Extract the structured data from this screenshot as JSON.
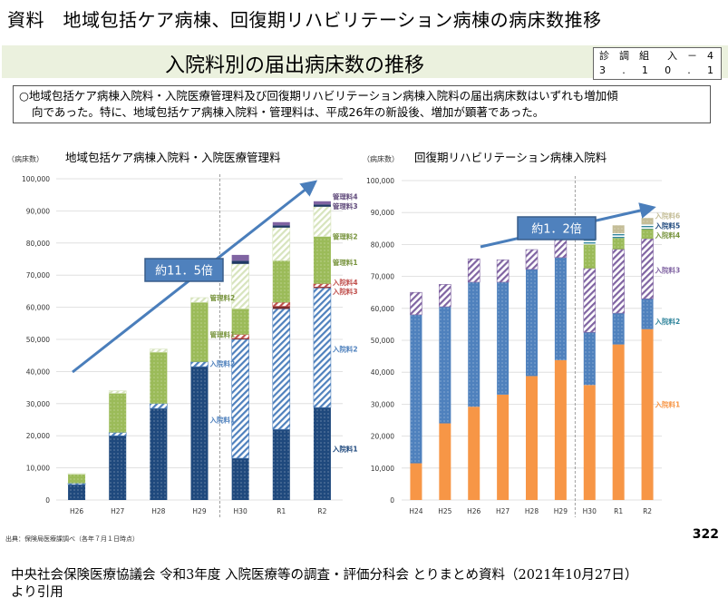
{
  "doc_title": "資料　地域包括ケア病棟、回復期リハビリテーション病棟の病床数推移",
  "banner_title": "入院料別の届出病床数の推移",
  "code_box": {
    "line1": [
      "診",
      "調",
      "組",
      "",
      "入",
      "－",
      "4"
    ],
    "line2": [
      "3",
      ".",
      "1",
      "0",
      ".",
      "1"
    ]
  },
  "summary": {
    "line1": "○地域包括ケア病棟入院料・入院医療管理料及び回復期リハビリテーション病棟入院料の届出病床数はいずれも増加傾",
    "line2": "向であった。特に、地域包括ケア病棟入院料・管理料は、平成26年の新設後、増加が顕著であった。"
  },
  "source": "出典：保険局医療課調べ（各年７月１日時点）",
  "page_number": "322",
  "citation": {
    "line1": "中央社会保険医療協議会 令和3年度 入院医療等の調査・評価分科会 とりまとめ資料（2021年10月27日）",
    "line2": "より引用"
  },
  "chart_data": [
    {
      "type": "bar",
      "stacked": true,
      "title": "地域包括ケア病棟入院料・入院医療管理料",
      "ylabel": "（病床数）",
      "xlabel": "",
      "ylim": [
        0,
        100000
      ],
      "yticks": [
        0,
        10000,
        20000,
        30000,
        40000,
        50000,
        60000,
        70000,
        80000,
        90000,
        100000
      ],
      "ytick_labels": [
        "0",
        "10,000",
        "20,000",
        "30,000",
        "40,000",
        "50,000",
        "60,000",
        "70,000",
        "80,000",
        "90,000",
        "100,000"
      ],
      "grid": true,
      "categories": [
        "H26",
        "H27",
        "H28",
        "H29",
        "H30",
        "R1",
        "R2"
      ],
      "divider_after": "H29",
      "annotation": "約11．5倍",
      "series": [
        {
          "name": "入院料1",
          "color": "#1f497d",
          "pattern": "dots",
          "values": [
            4800,
            20000,
            28500,
            41500,
            13000,
            22000,
            28800
          ]
        },
        {
          "name": "入院料2",
          "color": "#4f81bd",
          "pattern": "hatch",
          "values": [
            400,
            1000,
            1500,
            1500,
            37000,
            37500,
            37200
          ]
        },
        {
          "name": "入院料3",
          "color": "#7b2c2c",
          "pattern": "solid",
          "values": [
            0,
            0,
            0,
            0,
            300,
            800,
            300
          ]
        },
        {
          "name": "入院料4",
          "color": "#c0504d",
          "pattern": "hatch",
          "values": [
            0,
            0,
            0,
            0,
            1200,
            1200,
            1000
          ]
        },
        {
          "name": "管理料1",
          "color": "#9bbb59",
          "pattern": "dots",
          "values": [
            2800,
            12200,
            16000,
            18500,
            8000,
            13000,
            14700
          ]
        },
        {
          "name": "管理料2",
          "color": "#d7e4bd",
          "pattern": "hatch",
          "values": [
            200,
            800,
            1000,
            1500,
            14000,
            10300,
            9300
          ]
        },
        {
          "name": "管理料3",
          "color": "#1f3864",
          "pattern": "solid",
          "values": [
            0,
            0,
            0,
            0,
            1000,
            700,
            700
          ]
        },
        {
          "name": "管理料4",
          "color": "#8064a2",
          "pattern": "solid",
          "values": [
            0,
            0,
            0,
            0,
            1800,
            1000,
            1000
          ]
        }
      ],
      "bar_labels": [
        {
          "text": "管理料4",
          "color": "#5f497a",
          "category": "R2",
          "y": 94500
        },
        {
          "text": "管理料3",
          "color": "#5f497a",
          "category": "R2",
          "y": 91500
        },
        {
          "text": "管理料2",
          "color": "#77933c",
          "category": "R2",
          "y": 82000
        },
        {
          "text": "管理料1",
          "color": "#77933c",
          "category": "R2",
          "y": 74000
        },
        {
          "text": "入院料4",
          "color": "#c0504d",
          "category": "R2",
          "y": 67800
        },
        {
          "text": "入院料3",
          "color": "#c0504d",
          "category": "R2",
          "y": 65000
        },
        {
          "text": "入院料2",
          "color": "#4f81bd",
          "category": "R2",
          "y": 47000
        },
        {
          "text": "入院料1",
          "color": "#1f497d",
          "category": "R2",
          "y": 16000
        },
        {
          "text": "管理料2",
          "color": "#77933c",
          "category": "H29",
          "y": 63000
        },
        {
          "text": "管理料1",
          "color": "#77933c",
          "category": "H29",
          "y": 51500
        },
        {
          "text": "入院料2",
          "color": "#4f81bd",
          "category": "H29",
          "y": 42500
        },
        {
          "text": "入院料1",
          "color": "#4f81bd",
          "category": "H29",
          "y": 25000
        }
      ]
    },
    {
      "type": "bar",
      "stacked": true,
      "title": "回復期リハビリテーション病棟入院料",
      "ylabel": "（病床数）",
      "xlabel": "",
      "ylim": [
        0,
        100000
      ],
      "yticks": [
        0,
        10000,
        20000,
        30000,
        40000,
        50000,
        60000,
        70000,
        80000,
        90000,
        100000
      ],
      "ytick_labels": [
        "0",
        "10,000",
        "20,000",
        "30,000",
        "40,000",
        "50,000",
        "60,000",
        "70,000",
        "80,000",
        "90,000",
        "100,000"
      ],
      "grid": true,
      "categories": [
        "H24",
        "H25",
        "H26",
        "H27",
        "H28",
        "H29",
        "H30",
        "R1",
        "R2"
      ],
      "divider_after": "H29",
      "annotation": "約1．2倍",
      "series": [
        {
          "name": "入院料1",
          "color": "#f79646",
          "pattern": "solid",
          "values": [
            11500,
            24000,
            29200,
            33000,
            38800,
            43800,
            36000,
            48700,
            53500
          ]
        },
        {
          "name": "入院料2",
          "color": "#4f81bd",
          "pattern": "dots",
          "values": [
            46500,
            36500,
            39000,
            35200,
            33400,
            32100,
            16500,
            9800,
            9500
          ]
        },
        {
          "name": "入院料3",
          "color": "#8064a2",
          "pattern": "hatch",
          "values": [
            7000,
            7000,
            7300,
            7000,
            6200,
            5600,
            20000,
            20000,
            18800
          ]
        },
        {
          "name": "入院料4",
          "color": "#9bbb59",
          "pattern": "dots",
          "values": [
            0,
            0,
            0,
            0,
            0,
            0,
            7500,
            3500,
            3000
          ]
        },
        {
          "name": "入院料5",
          "color": "#31859c",
          "pattern": "lines",
          "values": [
            0,
            0,
            0,
            0,
            0,
            0,
            1500,
            1500,
            1500
          ]
        },
        {
          "name": "入院料6",
          "color": "#c4bd97",
          "pattern": "dots",
          "values": [
            0,
            0,
            0,
            0,
            0,
            0,
            1500,
            2500,
            2000
          ]
        }
      ],
      "bar_labels": [
        {
          "text": "入院料6",
          "color": "#c4bd97",
          "category": "R2",
          "y": 89000
        },
        {
          "text": "入院料5",
          "color": "#1f497d",
          "category": "R2",
          "y": 86000
        },
        {
          "text": "入院料4",
          "color": "#77933c",
          "category": "R2",
          "y": 83000
        },
        {
          "text": "入院料3",
          "color": "#8064a2",
          "category": "R2",
          "y": 72000
        },
        {
          "text": "入院料2",
          "color": "#31859c",
          "category": "R2",
          "y": 56000
        },
        {
          "text": "入院料1",
          "color": "#f79646",
          "category": "R2",
          "y": 30000
        }
      ]
    }
  ]
}
